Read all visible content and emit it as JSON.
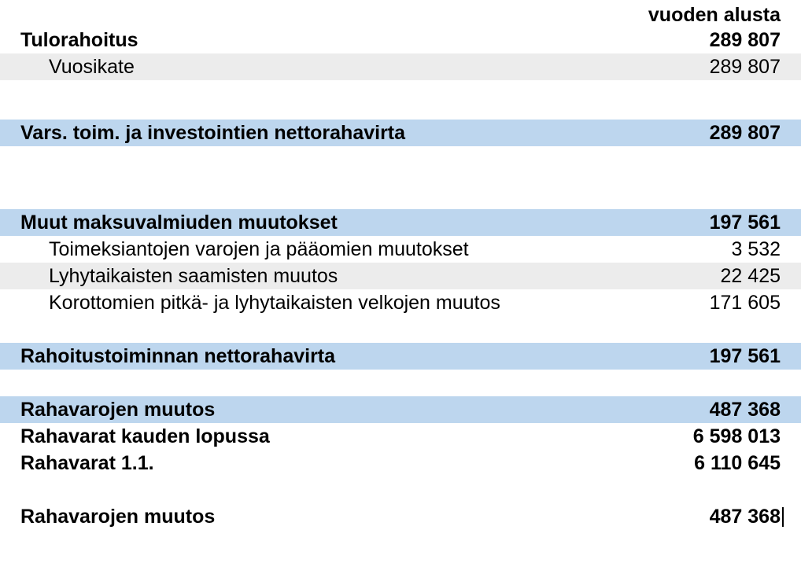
{
  "styling": {
    "font_family": "Arial",
    "font_size_pt": 18,
    "bg_gray": "#ececec",
    "bg_blue": "#bdd6ee",
    "text_color": "#000000",
    "page_bg": "#ffffff"
  },
  "header": {
    "value_label": "vuoden alusta"
  },
  "rows": [
    {
      "key": "tulorahoitus",
      "label": "Tulorahoitus",
      "value": "289 807",
      "bold": true,
      "bg": "none",
      "indent": false
    },
    {
      "key": "vuosikate",
      "label": "Vuosikate",
      "value": "289 807",
      "bold": false,
      "bg": "gray",
      "indent": true
    },
    {
      "key": "vars_toim",
      "label": "Vars. toim. ja investointien nettorahavirta",
      "value": "289 807",
      "bold": true,
      "bg": "blue",
      "indent": false
    },
    {
      "key": "muut_maksu",
      "label": "Muut maksuvalmiuden muutokset",
      "value": "197 561",
      "bold": true,
      "bg": "blue",
      "indent": false
    },
    {
      "key": "toimeksi",
      "label": "Toimeksiantojen varojen ja pääomien muutokset",
      "value": "3 532",
      "bold": false,
      "bg": "none",
      "indent": true
    },
    {
      "key": "lyhytaik",
      "label": "Lyhytaikaisten saamisten muutos",
      "value": "22 425",
      "bold": false,
      "bg": "gray",
      "indent": true
    },
    {
      "key": "korottom",
      "label": "Korottomien pitkä- ja lyhytaikaisten velkojen muutos",
      "value": "171 605",
      "bold": false,
      "bg": "none",
      "indent": true
    },
    {
      "key": "rahoitustoim",
      "label": "Rahoitustoiminnan nettorahavirta",
      "value": "197 561",
      "bold": true,
      "bg": "blue",
      "indent": false
    },
    {
      "key": "rahavarojen_muutos_1",
      "label": "Rahavarojen muutos",
      "value": "487 368",
      "bold": true,
      "bg": "blue",
      "indent": false
    },
    {
      "key": "rahavarat_lopussa",
      "label": "Rahavarat kauden lopussa",
      "value": "6 598 013",
      "bold": true,
      "bg": "none",
      "indent": false
    },
    {
      "key": "rahavarat_11",
      "label": "Rahavarat 1.1.",
      "value": "6 110 645",
      "bold": true,
      "bg": "none",
      "indent": false
    },
    {
      "key": "rahavarojen_muutos_2",
      "label": "Rahavarojen muutos",
      "value": "487 368",
      "bold": true,
      "bg": "none",
      "indent": false
    }
  ]
}
